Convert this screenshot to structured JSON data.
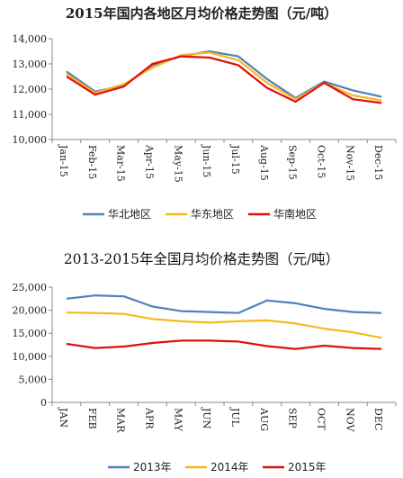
{
  "chart_data": [
    {
      "type": "line",
      "title": "2015年国内各地区月均价格走势图（元/吨）",
      "categories": [
        "Jan-15",
        "Feb-15",
        "Mar-15",
        "Apr-15",
        "May-15",
        "Jun-15",
        "Jul-15",
        "Aug-15",
        "Sep-15",
        "Oct-15",
        "Nov-15",
        "Dec-15"
      ],
      "ylim": [
        10000,
        14000
      ],
      "yticks": [
        "10,000",
        "11,000",
        "12,000",
        "13,000",
        "14,000"
      ],
      "ytick_values": [
        10000,
        11000,
        12000,
        13000,
        14000
      ],
      "legend_position": "bottom",
      "series": [
        {
          "name": "华北地区",
          "color": "#4f81bd",
          "values": [
            12700,
            11900,
            12150,
            12950,
            13300,
            13500,
            13300,
            12400,
            11650,
            12300,
            11950,
            11700
          ]
        },
        {
          "name": "华东地区",
          "color": "#f6b91c",
          "values": [
            12600,
            11850,
            12200,
            12850,
            13350,
            13450,
            13150,
            12250,
            11600,
            12250,
            11750,
            11550
          ]
        },
        {
          "name": "华南地区",
          "color": "#e00f0f",
          "values": [
            12500,
            11780,
            12100,
            13000,
            13300,
            13250,
            12950,
            12050,
            11500,
            12250,
            11600,
            11450
          ]
        }
      ]
    },
    {
      "type": "line",
      "title": "2013-2015年全国月均价格走势图（元/吨）",
      "categories": [
        "JAN",
        "FEB",
        "MAR",
        "APR",
        "MAY",
        "JUN",
        "JUL",
        "AUG",
        "SEP",
        "OCT",
        "NOV",
        "DEC"
      ],
      "ylim": [
        0,
        25000
      ],
      "yticks": [
        "0",
        "5,000",
        "10,000",
        "15,000",
        "20,000",
        "25,000"
      ],
      "ytick_values": [
        0,
        5000,
        10000,
        15000,
        20000,
        25000
      ],
      "legend_position": "bottom",
      "series": [
        {
          "name": "2013年",
          "color": "#4f81bd",
          "values": [
            22500,
            23200,
            23000,
            20800,
            19800,
            19600,
            19400,
            22100,
            21500,
            20300,
            19600,
            19400
          ]
        },
        {
          "name": "2014年",
          "color": "#f6b91c",
          "values": [
            19500,
            19400,
            19200,
            18100,
            17600,
            17300,
            17600,
            17800,
            17100,
            16000,
            15200,
            14000
          ]
        },
        {
          "name": "2015年",
          "color": "#e00f0f",
          "values": [
            12700,
            11800,
            12100,
            12900,
            13400,
            13400,
            13200,
            12200,
            11600,
            12300,
            11800,
            11600
          ]
        }
      ]
    }
  ]
}
